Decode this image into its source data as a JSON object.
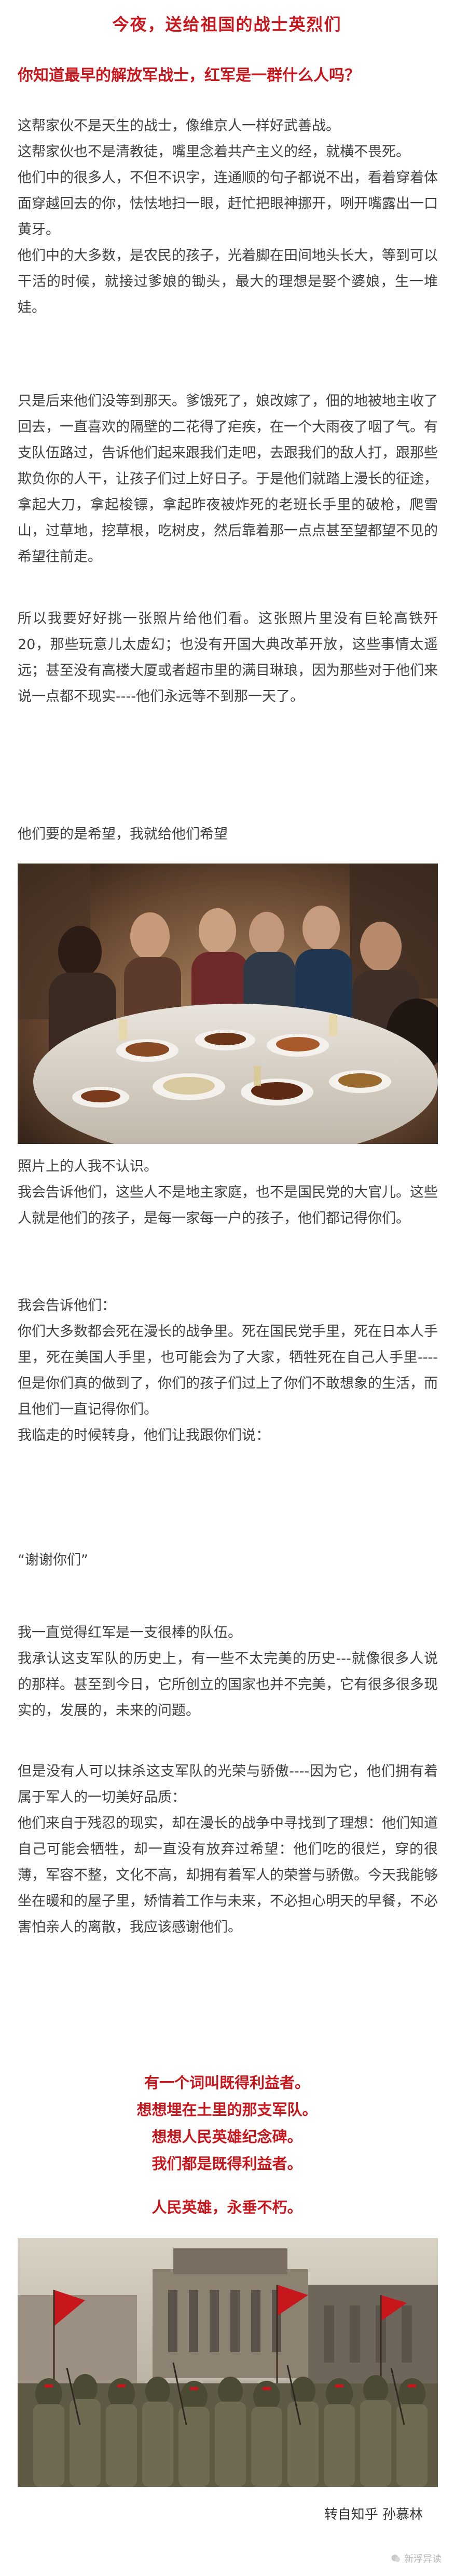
{
  "article": {
    "title": "今夜，送给祖国的战士英烈们",
    "subtitle": "你知道最早的解放军战士，红军是一群什么人吗？",
    "p1": [
      "这帮家伙不是天生的战士，像维京人一样好武善战。",
      "这帮家伙也不是清教徒，嘴里念着共产主义的经，就横不畏死。",
      "他们中的很多人，不但不识字，连通顺的句子都说不出，看着穿着体面穿越回去的你，怯怯地扫一眼，赶忙把眼神挪开，咧开嘴露出一口黄牙。",
      "他们中的大多数，是农民的孩子，光着脚在田间地头长大，等到可以干活的时候，就接过爹娘的锄头，最大的理想是娶个婆娘，生一堆娃。"
    ],
    "p2": "只是后来他们没等到那天。爹饿死了，娘改嫁了，佃的地被地主收了回去，一直喜欢的隔壁的二花得了疟疾，在一个大雨夜了咽了气。有支队伍路过，告诉他们起来跟我们走吧，去跟我们的敌人打，跟那些欺负你的人干，让孩子们过上好日子。于是他们就踏上漫长的征途，拿起大刀，拿起梭镖，拿起昨夜被炸死的老班长手里的破枪，爬雪山，过草地，挖草根，吃树皮，然后靠着那一点点甚至望都望不见的希望往前走。",
    "p3": "所以我要好好挑一张照片给他们看。这张照片里没有巨轮高铁歼20，那些玩意儿太虚幻；也没有开国大典改革开放，这些事情太遥远；甚至没有高楼大厦或者超市里的满目琳琅，因为那些对于他们来说一点都不现实----他们永远等不到那一天了。",
    "hope_line": "他们要的是希望，我就给他们希望",
    "p4": [
      "照片上的人我不认识。",
      "我会告诉他们，这些人不是地主家庭，也不是国民党的大官儿。这些人就是他们的孩子，是每一家每一户的孩子，他们都记得你们。"
    ],
    "p5": [
      "我会告诉他们：",
      "你们大多数都会死在漫长的战争里。死在国民党手里，死在日本人手里，死在美国人手里，也可能会为了大家，牺牲死在自己人手里----但是你们真的做到了，你们的孩子们过上了你们不敢想象的生活，而且他们一直记得你们。",
      "我临走的时候转身，他们让我跟你们说："
    ],
    "thanks": "“谢谢你们”",
    "p6": [
      "我一直觉得红军是一支很棒的队伍。",
      "我承认这支军队的历史上，有一些不太完美的历史---就像很多人说的那样。甚至到今日，它所创立的国家也并不完美，它有很多很多现实的，发展的，未来的问题。"
    ],
    "p7": [
      "但是没有人可以抹杀这支军队的光荣与骄傲----因为它，他们拥有着属于军人的一切美好品质：",
      "他们来自于残忍的现实，却在漫长的战争中寻找到了理想：他们知道自己可能会牺牲，却一直没有放弃过希望：他们吃的很烂，穿的很薄，军容不整，文化不高，却拥有着军人的荣誉与骄傲。今天我能够坐在暖和的屋子里，矫情着工作与未来，不必担心明天的早餐，不必害怕亲人的离散，我应该感谢他们。"
    ],
    "red_lines": [
      "有一个词叫既得利益者。",
      "想想埋在土里的那支军队。",
      "想想人民英雄纪念碑。",
      "我们都是既得利益者。"
    ],
    "final_line": "人民英雄，永垂不朽。",
    "source": "转自知乎 孙慕林",
    "watermark": "新浮异读"
  },
  "colors": {
    "accent_red": "#c8161d",
    "body_text": "#3f3f3f"
  }
}
